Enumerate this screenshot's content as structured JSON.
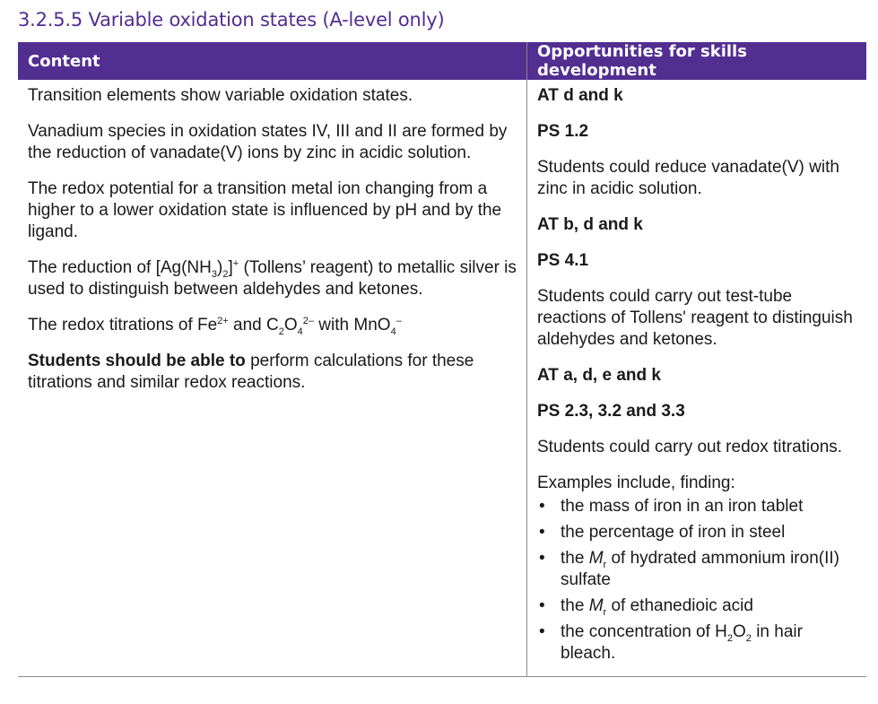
{
  "title": "3.2.5.5 Variable oxidation states (A-level only)",
  "accent_color": "#522e91",
  "headers": {
    "content": "Content",
    "skills": "Opportunities for skills development"
  },
  "content": [
    [
      [
        "Transition elements show variable oxidation states.",
        ""
      ]
    ],
    [
      [
        "Vanadium species in oxidation states IV, III and II are formed by the reduction of vanadate(V) ions by zinc in acidic solution.",
        ""
      ]
    ],
    [
      [
        "The redox potential for a transition metal ion changing from a higher to a lower oxidation state is influenced by pH and by the ligand.",
        ""
      ]
    ],
    [
      [
        "The reduction of [Ag(NH",
        ""
      ],
      [
        "3",
        "sub"
      ],
      [
        ")",
        ""
      ],
      [
        "2",
        "sub"
      ],
      [
        "]",
        ""
      ],
      [
        "+",
        "sup"
      ],
      [
        " (Tollens’ reagent) to metallic silver is used to distinguish between aldehydes and ketones.",
        ""
      ]
    ],
    [
      [
        "The redox titrations of Fe",
        ""
      ],
      [
        "2+",
        "sup"
      ],
      [
        " and C",
        ""
      ],
      [
        "2",
        "sub"
      ],
      [
        "O",
        ""
      ],
      [
        "4",
        "sub"
      ],
      [
        "2–",
        "sup"
      ],
      [
        " with MnO",
        ""
      ],
      [
        "4",
        "sub"
      ],
      [
        "–",
        "sup"
      ]
    ],
    [
      [
        "Students should be able to",
        "b"
      ],
      [
        " perform calculations for these titrations and similar redox reactions.",
        ""
      ]
    ]
  ],
  "skills": [
    [
      [
        "AT d and k",
        "b"
      ]
    ],
    [
      [
        "PS 1.2",
        "b"
      ]
    ],
    [
      [
        "Students could reduce vanadate(V) with zinc in acidic solution.",
        ""
      ]
    ],
    [
      [
        "AT b, d and k",
        "b"
      ]
    ],
    [
      [
        "PS 4.1",
        "b"
      ]
    ],
    [
      [
        "Students could carry out test-tube reactions of Tollens' reagent to distinguish aldehydes and ketones.",
        ""
      ]
    ],
    [
      [
        "AT a, d, e and k",
        "b"
      ]
    ],
    [
      [
        "PS 2.3, 3.2 and 3.3",
        "b"
      ]
    ],
    [
      [
        "Students could carry out redox titrations.",
        ""
      ]
    ]
  ],
  "examples_intro": "Examples include, finding:",
  "examples": [
    [
      [
        "the mass of iron in an iron tablet",
        ""
      ]
    ],
    [
      [
        "the percentage of iron in steel",
        ""
      ]
    ],
    [
      [
        "the ",
        ""
      ],
      [
        "M",
        "i"
      ],
      [
        "r",
        "sub"
      ],
      [
        " of hydrated ammonium iron(II) sulfate",
        ""
      ]
    ],
    [
      [
        "the ",
        ""
      ],
      [
        "M",
        "i"
      ],
      [
        "r",
        "sub"
      ],
      [
        " of ethanedioic acid",
        ""
      ]
    ],
    [
      [
        "the concentration of H",
        ""
      ],
      [
        "2",
        "sub"
      ],
      [
        "O",
        ""
      ],
      [
        "2",
        "sub"
      ],
      [
        " in hair bleach.",
        ""
      ]
    ]
  ]
}
